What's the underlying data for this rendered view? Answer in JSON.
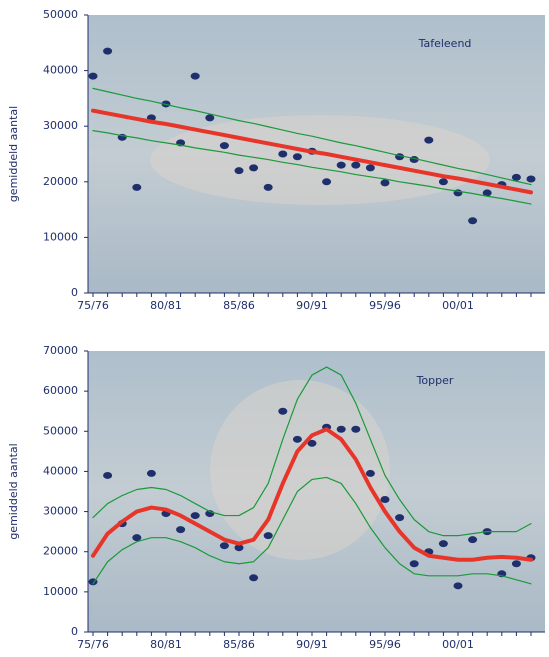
{
  "chart_data": [
    {
      "type": "line",
      "annotation": "Tafeleend",
      "y_label": "gemiddeld aantal",
      "categories": [
        "75/76",
        null,
        null,
        null,
        null,
        "80/81",
        null,
        null,
        null,
        null,
        "85/86",
        null,
        null,
        null,
        null,
        "90/91",
        null,
        null,
        null,
        null,
        "95/96",
        null,
        null,
        null,
        null,
        "00/01",
        null,
        null,
        null,
        null,
        null
      ],
      "ylim": [
        0,
        50000
      ],
      "yticks": [
        0,
        10000,
        20000,
        30000,
        40000,
        50000
      ],
      "series": [
        {
          "style": "dots",
          "color": "#1f2f6b",
          "values": [
            39000,
            43500,
            28000,
            19000,
            31500,
            34000,
            27000,
            39000,
            31500,
            26500,
            22000,
            22500,
            19000,
            25000,
            24500,
            25500,
            20000,
            23000,
            23000,
            22500,
            19800,
            24500,
            24000,
            27500,
            20000,
            18000,
            13000,
            18000,
            19500,
            20800,
            20500
          ]
        },
        {
          "style": "line",
          "color": "#1a9a3a",
          "values": [
            36800,
            36200,
            35600,
            35000,
            34500,
            33900,
            33300,
            32800,
            32200,
            31600,
            31000,
            30500,
            29900,
            29300,
            28700,
            28200,
            27600,
            27000,
            26500,
            25900,
            25300,
            24700,
            24200,
            23600,
            23000,
            22400,
            21900,
            21300,
            20700,
            20100,
            19500
          ]
        },
        {
          "style": "line",
          "color": "#1a9a3a",
          "values": [
            29200,
            28800,
            28300,
            27900,
            27400,
            27000,
            26600,
            26100,
            25700,
            25300,
            24800,
            24400,
            24000,
            23500,
            23100,
            22600,
            22200,
            21800,
            21300,
            20900,
            20500,
            20000,
            19600,
            19200,
            18700,
            18300,
            17900,
            17400,
            17000,
            16500,
            16000
          ]
        },
        {
          "style": "trend",
          "color": "#e8352a",
          "values": [
            32800,
            32300,
            31800,
            31300,
            30800,
            30400,
            29900,
            29400,
            28900,
            28400,
            27900,
            27400,
            26900,
            26400,
            25900,
            25400,
            25000,
            24500,
            24000,
            23500,
            23000,
            22500,
            22000,
            21500,
            21000,
            20600,
            20100,
            19600,
            19100,
            18600,
            18100
          ]
        }
      ]
    },
    {
      "type": "line",
      "annotation": "Topper",
      "y_label": "gemiddeld aantal",
      "categories": [
        "75/76",
        null,
        null,
        null,
        null,
        "80/81",
        null,
        null,
        null,
        null,
        "85/86",
        null,
        null,
        null,
        null,
        "90/91",
        null,
        null,
        null,
        null,
        "95/96",
        null,
        null,
        null,
        null,
        "00/01",
        null,
        null,
        null,
        null,
        null
      ],
      "ylim": [
        0,
        70000
      ],
      "yticks": [
        0,
        10000,
        20000,
        30000,
        40000,
        50000,
        60000,
        70000
      ],
      "series": [
        {
          "style": "dots",
          "color": "#1f2f6b",
          "values": [
            12500,
            39000,
            27000,
            23500,
            39500,
            29500,
            25500,
            29000,
            29500,
            21500,
            21000,
            13500,
            24000,
            55000,
            48000,
            47000,
            51000,
            50500,
            50500,
            39500,
            33000,
            28500,
            17000,
            20000,
            22000,
            11500,
            23000,
            25000,
            14500,
            17000,
            18500
          ]
        },
        {
          "style": "line",
          "color": "#1a9a3a",
          "values": [
            28500,
            32000,
            34000,
            35500,
            36000,
            35500,
            34000,
            32000,
            30000,
            29000,
            29000,
            31000,
            37000,
            48000,
            58000,
            64000,
            66000,
            64000,
            57000,
            48000,
            39000,
            33000,
            28000,
            25000,
            24000,
            24000,
            24500,
            25000,
            25000,
            25000,
            27000
          ]
        },
        {
          "style": "line",
          "color": "#1a9a3a",
          "values": [
            12000,
            17500,
            20500,
            22500,
            23500,
            23500,
            22500,
            21000,
            19000,
            17500,
            17000,
            17500,
            21000,
            28000,
            35000,
            38000,
            38500,
            37000,
            32000,
            26000,
            21000,
            17000,
            14500,
            14000,
            14000,
            14000,
            14500,
            14500,
            14000,
            13000,
            12000
          ]
        },
        {
          "style": "trend",
          "color": "#e8352a",
          "values": [
            19000,
            24500,
            27500,
            30000,
            31000,
            30500,
            29000,
            27000,
            25000,
            23000,
            22000,
            23000,
            28000,
            37000,
            45000,
            49000,
            50500,
            48000,
            43000,
            36000,
            30000,
            25000,
            21000,
            19000,
            18500,
            18000,
            18000,
            18500,
            18700,
            18500,
            18000
          ]
        }
      ]
    }
  ]
}
